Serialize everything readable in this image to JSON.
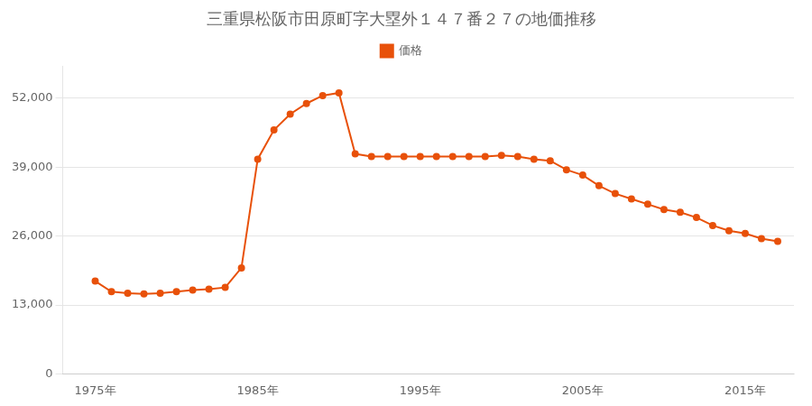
{
  "chart_data": {
    "type": "line",
    "title": "三重県松阪市田原町字大塁外１４７番２７の地価推移",
    "x": [
      1975,
      1976,
      1977,
      1978,
      1979,
      1980,
      1981,
      1982,
      1983,
      1984,
      1985,
      1986,
      1987,
      1988,
      1989,
      1990,
      1991,
      1992,
      1993,
      1994,
      1995,
      1996,
      1997,
      1998,
      1999,
      2000,
      2001,
      2002,
      2003,
      2004,
      2005,
      2006,
      2007,
      2008,
      2009,
      2010,
      2011,
      2012,
      2013,
      2014,
      2015,
      2016,
      2017
    ],
    "series": [
      {
        "name": "価格",
        "color": "#e8510a",
        "marker": "circle",
        "values": [
          17500,
          15500,
          15200,
          15100,
          15200,
          15500,
          15800,
          16000,
          16300,
          20000,
          40500,
          46000,
          49000,
          51000,
          52500,
          53000,
          41500,
          41000,
          41000,
          41000,
          41000,
          41000,
          41000,
          41000,
          41000,
          41200,
          41000,
          40500,
          40200,
          38500,
          37500,
          35500,
          34000,
          33000,
          32000,
          31000,
          30500,
          29500,
          28000,
          27000,
          26500,
          25500,
          25000
        ]
      }
    ],
    "xlim": [
      1973,
      2018
    ],
    "xticks": [
      {
        "value": 1975,
        "label": "1975年"
      },
      {
        "value": 1985,
        "label": "1985年"
      },
      {
        "value": 1995,
        "label": "1995年"
      },
      {
        "value": 2005,
        "label": "2005年"
      },
      {
        "value": 2015,
        "label": "2015年"
      }
    ],
    "ylim": [
      0,
      58000
    ],
    "yticks": [
      0,
      {
        "value": 13000,
        "label": "13,000"
      },
      {
        "value": 26000,
        "label": "26,000"
      },
      {
        "value": 39000,
        "label": "39,000"
      },
      {
        "value": 52000,
        "label": "52,000"
      }
    ],
    "grid": "y",
    "legend": "top"
  }
}
